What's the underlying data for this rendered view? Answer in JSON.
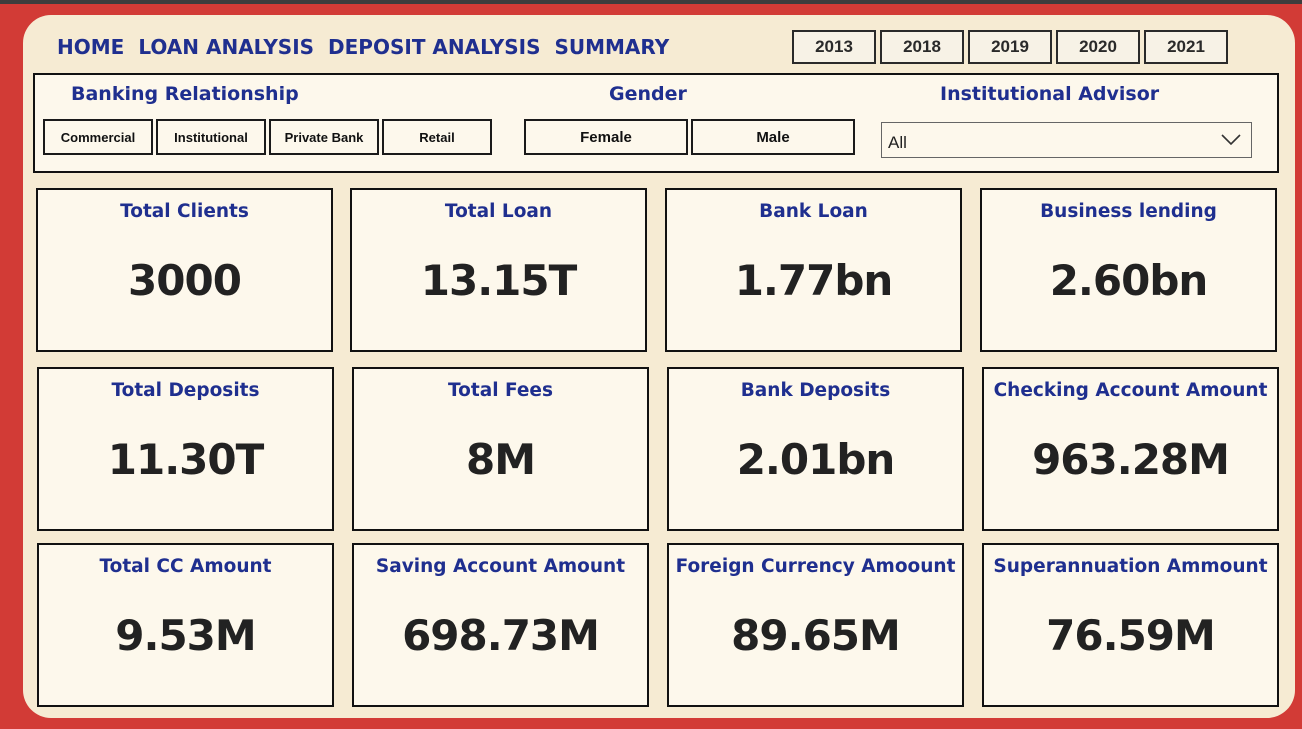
{
  "nav": {
    "items": [
      "HOME",
      "LOAN ANALYSIS",
      "DEPOSIT ANALYSIS",
      "SUMMARY"
    ]
  },
  "years": [
    "2013",
    "2018",
    "2019",
    "2020",
    "2021"
  ],
  "slicers": {
    "banking_relationship": {
      "title": "Banking Relationship",
      "options": [
        "Commercial",
        "Institutional",
        "Private Bank",
        "Retail"
      ]
    },
    "gender": {
      "title": "Gender",
      "options": [
        "Female",
        "Male"
      ]
    },
    "institutional_advisor": {
      "title": "Institutional Advisor",
      "selected": "All"
    }
  },
  "cards": [
    {
      "title": "Total Clients",
      "value": "3000"
    },
    {
      "title": "Total Loan",
      "value": "13.15T"
    },
    {
      "title": "Bank Loan",
      "value": "1.77bn"
    },
    {
      "title": "Business lending",
      "value": "2.60bn"
    },
    {
      "title": "Total Deposits",
      "value": "11.30T"
    },
    {
      "title": "Total Fees",
      "value": "8M"
    },
    {
      "title": "Bank Deposits",
      "value": "2.01bn"
    },
    {
      "title": "Checking Account Amount",
      "value": "963.28M"
    },
    {
      "title": "Total CC Amount",
      "value": "9.53M"
    },
    {
      "title": "Saving Account Amount",
      "value": "698.73M"
    },
    {
      "title": "Foreign Currency Amoount",
      "value": "89.65M"
    },
    {
      "title": "Superannuation Ammount",
      "value": "76.59M"
    }
  ],
  "colors": {
    "frame": "#d23b36",
    "panel": "#f6ebd3",
    "card": "#fdf8ec",
    "title_blue": "#1f2f8f"
  }
}
